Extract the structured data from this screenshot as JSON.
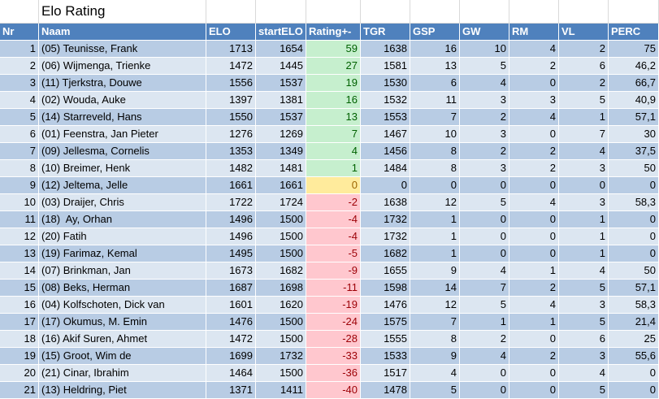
{
  "title": "Elo Rating",
  "header": [
    "Nr",
    "Naam",
    "ELO",
    "startELO",
    "Rating+-",
    "TGR",
    "GSP",
    "GW",
    "RM",
    "VL",
    "PERC"
  ],
  "rows": [
    [
      1,
      "(05) Teunisse, Frank",
      1713,
      1654,
      59,
      1638,
      16,
      10,
      4,
      2,
      75
    ],
    [
      2,
      "(06) Wijmenga, Trienke",
      1472,
      1445,
      27,
      1581,
      13,
      5,
      2,
      6,
      "46,2"
    ],
    [
      3,
      "(11) Tjerkstra, Douwe",
      1556,
      1537,
      19,
      1530,
      6,
      4,
      0,
      2,
      "66,7"
    ],
    [
      4,
      "(02) Wouda, Auke",
      1397,
      1381,
      16,
      1532,
      11,
      3,
      3,
      5,
      "40,9"
    ],
    [
      5,
      "(14) Starreveld, Hans",
      1550,
      1537,
      13,
      1553,
      7,
      2,
      4,
      1,
      "57,1"
    ],
    [
      6,
      "(01) Feenstra, Jan Pieter",
      1276,
      1269,
      7,
      1467,
      10,
      3,
      0,
      7,
      30
    ],
    [
      7,
      "(09) Jellesma, Cornelis",
      1353,
      1349,
      4,
      1456,
      8,
      2,
      2,
      4,
      "37,5"
    ],
    [
      8,
      "(10) Breimer, Henk",
      1482,
      1481,
      1,
      1484,
      8,
      3,
      2,
      3,
      50
    ],
    [
      9,
      "(12) Jeltema, Jelle",
      1661,
      1661,
      0,
      0,
      0,
      0,
      0,
      0,
      0
    ],
    [
      10,
      "(03) Draijer, Chris",
      1722,
      1724,
      -2,
      1638,
      12,
      5,
      4,
      3,
      "58,3"
    ],
    [
      11,
      "(18)  Ay, Orhan",
      1496,
      1500,
      -4,
      1732,
      1,
      0,
      0,
      1,
      0
    ],
    [
      12,
      "(20) Fatih",
      1496,
      1500,
      -4,
      1732,
      1,
      0,
      0,
      1,
      0
    ],
    [
      13,
      "(19) Farimaz, Kemal",
      1495,
      1500,
      -5,
      1682,
      1,
      0,
      0,
      1,
      0
    ],
    [
      14,
      "(07) Brinkman, Jan",
      1673,
      1682,
      -9,
      1655,
      9,
      4,
      1,
      4,
      50
    ],
    [
      15,
      "(08) Beks, Herman",
      1687,
      1698,
      -11,
      1598,
      14,
      7,
      2,
      5,
      "57,1"
    ],
    [
      16,
      "(04) Kolfschoten, Dick van",
      1601,
      1620,
      -19,
      1476,
      12,
      5,
      4,
      3,
      "58,3"
    ],
    [
      17,
      "(17) Okumus, M. Emin",
      1476,
      1500,
      -24,
      1575,
      7,
      1,
      1,
      5,
      "21,4"
    ],
    [
      18,
      "(16) Akif Suren, Ahmet",
      1472,
      1500,
      -28,
      1555,
      8,
      2,
      0,
      6,
      25
    ],
    [
      19,
      "(15) Groot, Wim de",
      1699,
      1732,
      -33,
      1533,
      9,
      4,
      2,
      3,
      "55,6"
    ],
    [
      20,
      "(21) Cinar, Ibrahim",
      1464,
      1500,
      -36,
      1517,
      4,
      0,
      0,
      4,
      0
    ],
    [
      21,
      "(13) Heldring, Piet",
      1371,
      1411,
      -40,
      1478,
      5,
      0,
      0,
      5,
      0
    ]
  ]
}
